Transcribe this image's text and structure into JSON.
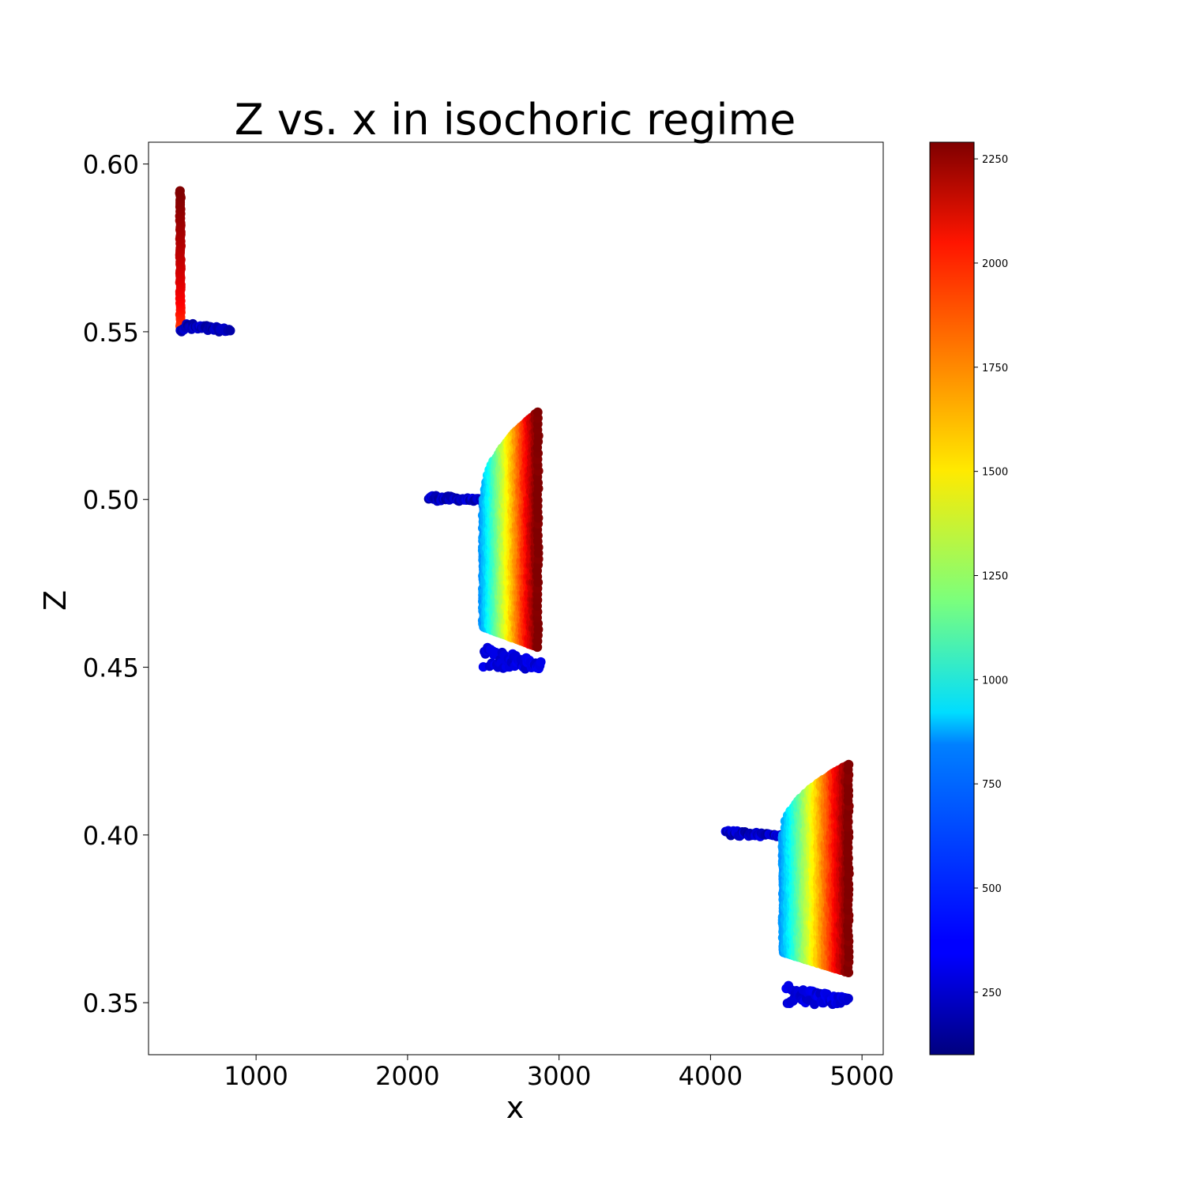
{
  "chart_data": {
    "type": "scatter",
    "title": "Z vs. x in isochoric regime",
    "xlabel": "x",
    "ylabel": "Z",
    "xlim": [
      290,
      5140
    ],
    "ylim": [
      0.3345,
      0.6065
    ],
    "xticks": [
      1000,
      2000,
      3000,
      4000,
      5000
    ],
    "xtick_labels": [
      "1000",
      "2000",
      "3000",
      "4000",
      "5000"
    ],
    "yticks": [
      0.35,
      0.4,
      0.45,
      0.5,
      0.55,
      0.6
    ],
    "ytick_labels": [
      "0.35",
      "0.40",
      "0.45",
      "0.50",
      "0.55",
      "0.60"
    ],
    "grid": false,
    "colormap": "jet",
    "colorbar": {
      "vmin": 100,
      "vmax": 2290,
      "ticks": [
        250,
        500,
        750,
        1000,
        1250,
        1500,
        1750,
        2000,
        2250
      ],
      "tick_labels": [
        "250",
        "500",
        "750",
        "1000",
        "1250",
        "1500",
        "1750",
        "2000",
        "2250"
      ]
    },
    "clusters": [
      {
        "vertical_strip": {
          "x": 500,
          "z_range": [
            0.551,
            0.592
          ],
          "color_range": [
            1850,
            2290
          ]
        },
        "tail": {
          "x_range": [
            500,
            830
          ],
          "z_top": 0.553,
          "z_bottom": 0.55,
          "color_range": [
            150,
            300
          ]
        }
      },
      {
        "gradient_block": {
          "x_range": [
            2500,
            2860
          ],
          "z_bottom": 0.456,
          "z_top_left": 0.5,
          "z_top_right": 0.526,
          "color_range": [
            700,
            2290
          ]
        },
        "upper_tail": {
          "x_range": [
            2140,
            2500
          ],
          "z_top": 0.5015,
          "z_bottom": 0.4995,
          "color_range": [
            150,
            330
          ]
        },
        "lower_tail": {
          "x_range": [
            2500,
            2880
          ],
          "z_top": 0.4565,
          "z_bottom": 0.4495,
          "color_range": [
            250,
            350
          ]
        }
      },
      {
        "gradient_block": {
          "x_range": [
            4480,
            4910
          ],
          "z_bottom": 0.359,
          "z_top_left": 0.4,
          "z_top_right": 0.421,
          "color_range": [
            700,
            2290
          ]
        },
        "upper_tail": {
          "x_range": [
            4100,
            4480
          ],
          "z_top": 0.4015,
          "z_bottom": 0.3995,
          "color_range": [
            150,
            330
          ]
        },
        "lower_tail": {
          "x_range": [
            4500,
            4910
          ],
          "z_top": 0.3555,
          "z_bottom": 0.3495,
          "color_range": [
            250,
            350
          ]
        }
      }
    ]
  }
}
